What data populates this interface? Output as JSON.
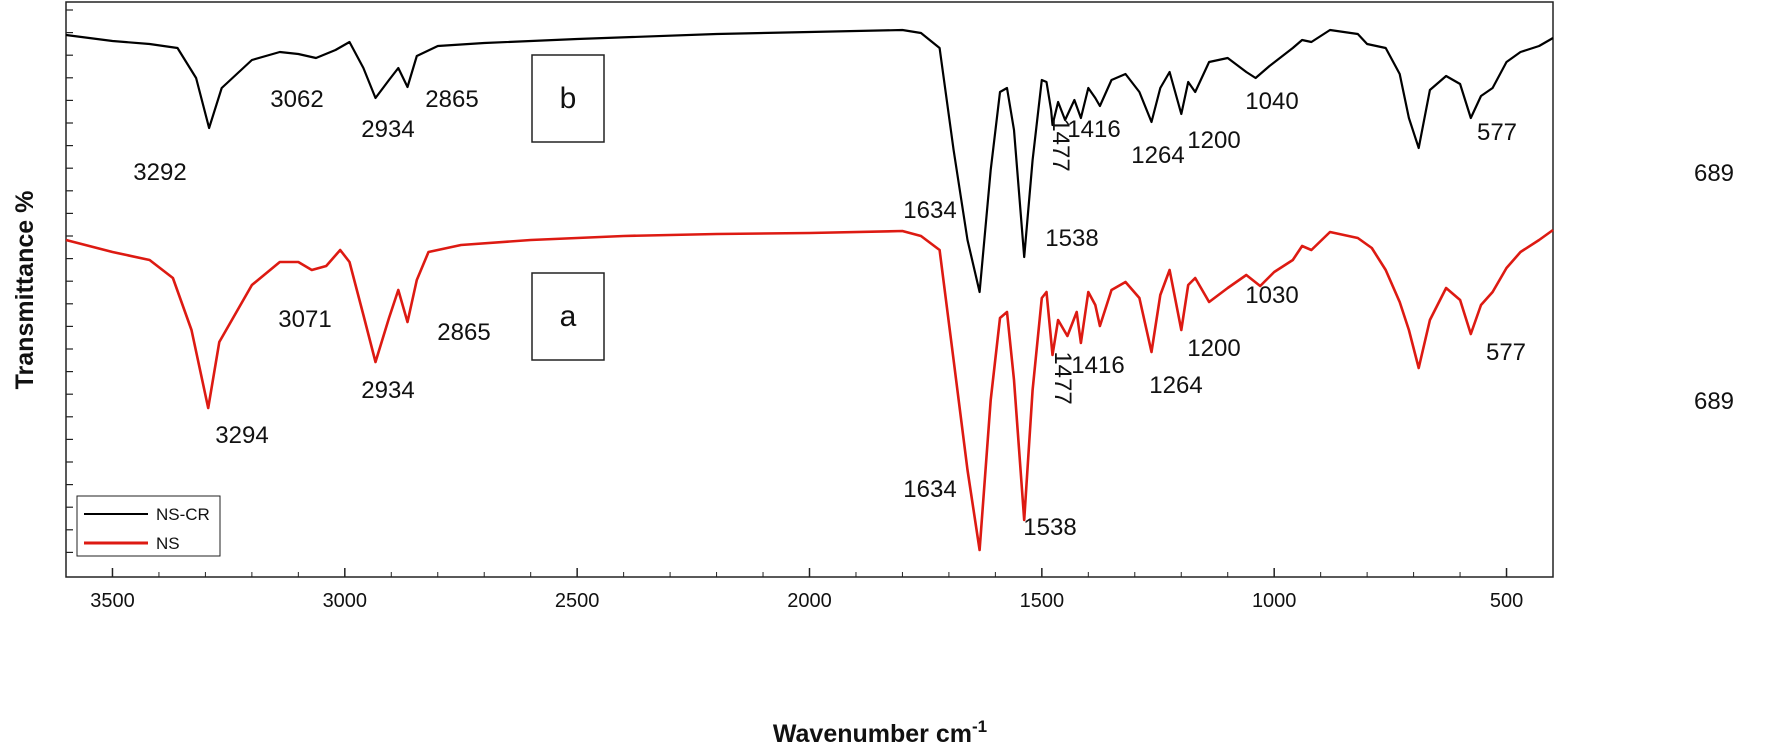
{
  "chart_data": {
    "type": "line",
    "xlabel": "Wavenumber cm",
    "xlabel_sup": "-1",
    "ylabel": "Transmittance %",
    "xlim": [
      3600,
      400
    ],
    "x_reversed": true,
    "x_ticks": [
      3500,
      3000,
      2500,
      2000,
      1500,
      1000,
      500
    ],
    "x_tick_labels": [
      "3500",
      "3000",
      "2500",
      "2000",
      "1500",
      "1000",
      "500"
    ],
    "y_ticks_labeled": false,
    "grid": false,
    "legend_position": "bottom-left",
    "series": [
      {
        "name": "NS-CR",
        "color": "#000000",
        "box_label": "b",
        "points": [
          [
            3600,
            5
          ],
          [
            3500,
            11
          ],
          [
            3420,
            14
          ],
          [
            3360,
            18
          ],
          [
            3320,
            48
          ],
          [
            3292,
            98
          ],
          [
            3265,
            58
          ],
          [
            3200,
            30
          ],
          [
            3140,
            22
          ],
          [
            3100,
            24
          ],
          [
            3062,
            28
          ],
          [
            3020,
            20
          ],
          [
            2990,
            12
          ],
          [
            2960,
            38
          ],
          [
            2934,
            68
          ],
          [
            2905,
            50
          ],
          [
            2885,
            38
          ],
          [
            2865,
            57
          ],
          [
            2845,
            26
          ],
          [
            2800,
            16
          ],
          [
            2700,
            13
          ],
          [
            2500,
            9
          ],
          [
            2200,
            4
          ],
          [
            2000,
            2
          ],
          [
            1800,
            0
          ],
          [
            1760,
            3
          ],
          [
            1720,
            18
          ],
          [
            1690,
            120
          ],
          [
            1660,
            210
          ],
          [
            1634,
            262
          ],
          [
            1610,
            140
          ],
          [
            1590,
            62
          ],
          [
            1575,
            58
          ],
          [
            1560,
            100
          ],
          [
            1538,
            227
          ],
          [
            1520,
            130
          ],
          [
            1500,
            50
          ],
          [
            1490,
            52
          ],
          [
            1480,
            80
          ],
          [
            1477,
            95
          ],
          [
            1465,
            72
          ],
          [
            1450,
            90
          ],
          [
            1430,
            70
          ],
          [
            1416,
            88
          ],
          [
            1400,
            58
          ],
          [
            1385,
            68
          ],
          [
            1375,
            76
          ],
          [
            1350,
            50
          ],
          [
            1320,
            44
          ],
          [
            1290,
            62
          ],
          [
            1264,
            92
          ],
          [
            1245,
            58
          ],
          [
            1225,
            42
          ],
          [
            1200,
            84
          ],
          [
            1185,
            52
          ],
          [
            1170,
            62
          ],
          [
            1140,
            32
          ],
          [
            1100,
            28
          ],
          [
            1060,
            42
          ],
          [
            1040,
            48
          ],
          [
            1010,
            36
          ],
          [
            960,
            18
          ],
          [
            940,
            10
          ],
          [
            920,
            12
          ],
          [
            880,
            0
          ],
          [
            820,
            4
          ],
          [
            800,
            14
          ],
          [
            760,
            18
          ],
          [
            730,
            44
          ],
          [
            710,
            88
          ],
          [
            689,
            118
          ],
          [
            665,
            60
          ],
          [
            630,
            46
          ],
          [
            600,
            54
          ],
          [
            577,
            88
          ],
          [
            555,
            66
          ],
          [
            530,
            58
          ],
          [
            500,
            32
          ],
          [
            470,
            22
          ],
          [
            430,
            16
          ],
          [
            400,
            8
          ]
        ]
      },
      {
        "name": "NS",
        "color": "#dd1a12",
        "box_label": "a",
        "points": [
          [
            3600,
            240
          ],
          [
            3500,
            252
          ],
          [
            3420,
            260
          ],
          [
            3370,
            278
          ],
          [
            3330,
            330
          ],
          [
            3294,
            408
          ],
          [
            3270,
            342
          ],
          [
            3200,
            285
          ],
          [
            3140,
            262
          ],
          [
            3100,
            262
          ],
          [
            3071,
            270
          ],
          [
            3040,
            266
          ],
          [
            3010,
            250
          ],
          [
            2990,
            262
          ],
          [
            2960,
            315
          ],
          [
            2934,
            362
          ],
          [
            2905,
            318
          ],
          [
            2885,
            290
          ],
          [
            2865,
            322
          ],
          [
            2845,
            280
          ],
          [
            2820,
            252
          ],
          [
            2750,
            245
          ],
          [
            2600,
            240
          ],
          [
            2400,
            236
          ],
          [
            2200,
            234
          ],
          [
            2000,
            233
          ],
          [
            1800,
            231
          ],
          [
            1760,
            236
          ],
          [
            1720,
            250
          ],
          [
            1690,
            360
          ],
          [
            1660,
            470
          ],
          [
            1634,
            550
          ],
          [
            1610,
            400
          ],
          [
            1590,
            318
          ],
          [
            1575,
            312
          ],
          [
            1560,
            380
          ],
          [
            1538,
            520
          ],
          [
            1520,
            390
          ],
          [
            1500,
            298
          ],
          [
            1490,
            292
          ],
          [
            1480,
            340
          ],
          [
            1477,
            355
          ],
          [
            1465,
            320
          ],
          [
            1445,
            336
          ],
          [
            1425,
            312
          ],
          [
            1416,
            343
          ],
          [
            1400,
            292
          ],
          [
            1385,
            305
          ],
          [
            1375,
            326
          ],
          [
            1350,
            290
          ],
          [
            1320,
            282
          ],
          [
            1290,
            298
          ],
          [
            1264,
            352
          ],
          [
            1245,
            295
          ],
          [
            1225,
            270
          ],
          [
            1200,
            330
          ],
          [
            1185,
            285
          ],
          [
            1170,
            278
          ],
          [
            1140,
            302
          ],
          [
            1100,
            288
          ],
          [
            1060,
            275
          ],
          [
            1030,
            286
          ],
          [
            1000,
            272
          ],
          [
            960,
            260
          ],
          [
            940,
            246
          ],
          [
            920,
            250
          ],
          [
            880,
            232
          ],
          [
            820,
            238
          ],
          [
            790,
            248
          ],
          [
            760,
            270
          ],
          [
            730,
            302
          ],
          [
            710,
            330
          ],
          [
            689,
            368
          ],
          [
            665,
            320
          ],
          [
            630,
            288
          ],
          [
            600,
            300
          ],
          [
            577,
            334
          ],
          [
            555,
            305
          ],
          [
            530,
            292
          ],
          [
            500,
            268
          ],
          [
            470,
            252
          ],
          [
            430,
            240
          ],
          [
            400,
            230
          ]
        ]
      }
    ],
    "annotations": [
      {
        "text": "3292",
        "series": "NS-CR"
      },
      {
        "text": "3062",
        "series": "NS-CR"
      },
      {
        "text": "2934",
        "series": "NS-CR"
      },
      {
        "text": "2865",
        "series": "NS-CR"
      },
      {
        "text": "1634",
        "series": "NS-CR"
      },
      {
        "text": "1538",
        "series": "NS-CR"
      },
      {
        "text": "1477",
        "series": "NS-CR",
        "rotated": true
      },
      {
        "text": "1416",
        "series": "NS-CR"
      },
      {
        "text": "1264",
        "series": "NS-CR"
      },
      {
        "text": "1200",
        "series": "NS-CR"
      },
      {
        "text": "1040",
        "series": "NS-CR"
      },
      {
        "text": "689",
        "series": "NS-CR"
      },
      {
        "text": "577",
        "series": "NS-CR"
      },
      {
        "text": "3294",
        "series": "NS"
      },
      {
        "text": "3071",
        "series": "NS"
      },
      {
        "text": "2934",
        "series": "NS"
      },
      {
        "text": "2865",
        "series": "NS"
      },
      {
        "text": "1634",
        "series": "NS"
      },
      {
        "text": "1538",
        "series": "NS"
      },
      {
        "text": "1477",
        "series": "NS",
        "rotated": true
      },
      {
        "text": "1416",
        "series": "NS"
      },
      {
        "text": "1264",
        "series": "NS"
      },
      {
        "text": "1200",
        "series": "NS"
      },
      {
        "text": "1030",
        "series": "NS"
      },
      {
        "text": "689",
        "series": "NS"
      },
      {
        "text": "577",
        "series": "NS"
      }
    ]
  }
}
